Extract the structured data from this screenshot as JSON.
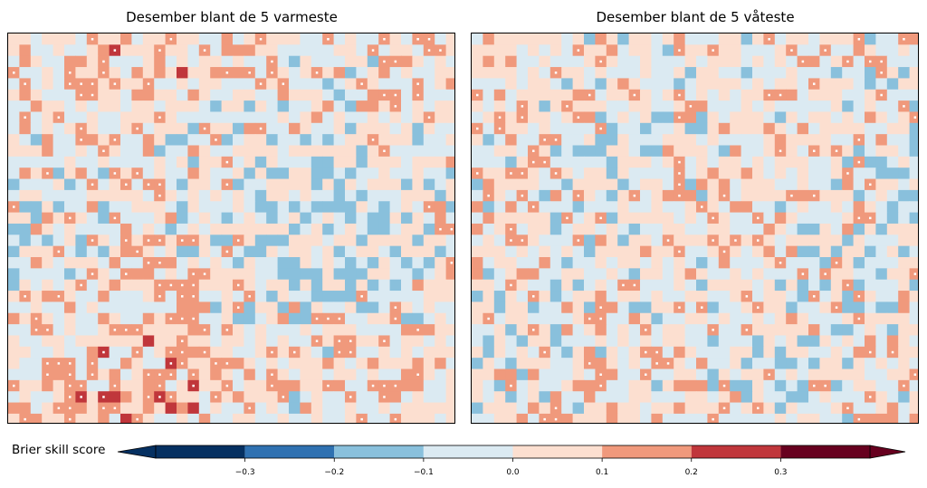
{
  "panels": [
    {
      "title": "Desember blant de 5 varmeste",
      "seed": 7
    },
    {
      "title": "Desember blant de 5 våteste",
      "seed": 23
    }
  ],
  "colorbar": {
    "label": "Brier skill score",
    "bounds": [
      -0.4,
      -0.3,
      -0.2,
      -0.1,
      0.0,
      0.1,
      0.2,
      0.3,
      0.4
    ],
    "ticks": [
      "−0.3",
      "−0.2",
      "−0.1",
      "0.0",
      "0.1",
      "0.2",
      "0.3"
    ],
    "colors": [
      "#053061",
      "#2f71b1",
      "#89c0dc",
      "#dbeaf2",
      "#fcdfd0",
      "#f0997c",
      "#c0363b",
      "#67001f"
    ],
    "extend": "both"
  }
}
